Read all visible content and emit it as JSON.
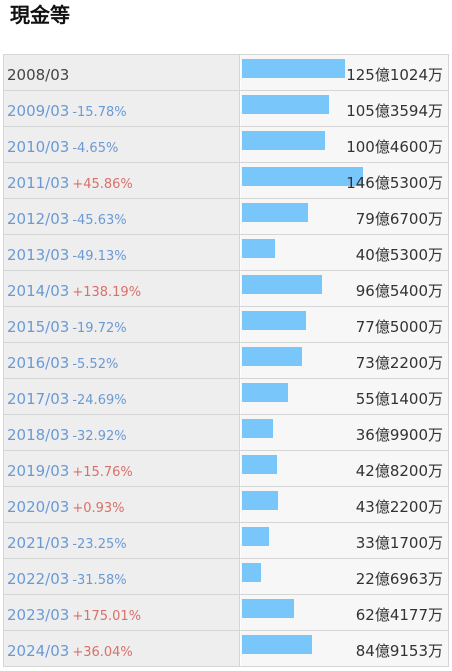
{
  "title": "現金等",
  "max_value": 146.53,
  "rows": [
    {
      "year": "2008/03",
      "change": "",
      "direction": "",
      "value": "125億1024万",
      "amount": 125.1024
    },
    {
      "year": "2009/03",
      "change": "-15.78%",
      "direction": "down",
      "value": "105億3594万",
      "amount": 105.3594
    },
    {
      "year": "2010/03",
      "change": "-4.65%",
      "direction": "down",
      "value": "100億4600万",
      "amount": 100.46
    },
    {
      "year": "2011/03",
      "change": "+45.86%",
      "direction": "up",
      "value": "146億5300万",
      "amount": 146.53
    },
    {
      "year": "2012/03",
      "change": "-45.63%",
      "direction": "down",
      "value": "79億6700万",
      "amount": 79.67
    },
    {
      "year": "2013/03",
      "change": "-49.13%",
      "direction": "down",
      "value": "40億5300万",
      "amount": 40.53
    },
    {
      "year": "2014/03",
      "change": "+138.19%",
      "direction": "up",
      "value": "96億5400万",
      "amount": 96.54
    },
    {
      "year": "2015/03",
      "change": "-19.72%",
      "direction": "down",
      "value": "77億5000万",
      "amount": 77.5
    },
    {
      "year": "2016/03",
      "change": "-5.52%",
      "direction": "down",
      "value": "73億2200万",
      "amount": 73.22
    },
    {
      "year": "2017/03",
      "change": "-24.69%",
      "direction": "down",
      "value": "55億1400万",
      "amount": 55.14
    },
    {
      "year": "2018/03",
      "change": "-32.92%",
      "direction": "down",
      "value": "36億9900万",
      "amount": 36.99
    },
    {
      "year": "2019/03",
      "change": "+15.76%",
      "direction": "up",
      "value": "42億8200万",
      "amount": 42.82
    },
    {
      "year": "2020/03",
      "change": "+0.93%",
      "direction": "up",
      "value": "43億2200万",
      "amount": 43.22
    },
    {
      "year": "2021/03",
      "change": "-23.25%",
      "direction": "down",
      "value": "33億1700万",
      "amount": 33.17
    },
    {
      "year": "2022/03",
      "change": "-31.58%",
      "direction": "down",
      "value": "22億6963万",
      "amount": 22.6963
    },
    {
      "year": "2023/03",
      "change": "+175.01%",
      "direction": "up",
      "value": "62億4177万",
      "amount": 62.4177
    },
    {
      "year": "2024/03",
      "change": "+36.04%",
      "direction": "up",
      "value": "84億9153万",
      "amount": 84.9153
    }
  ],
  "colors": {
    "bar": "#79c6fb",
    "decrease": "#6a9ad6",
    "increase": "#d9706a"
  }
}
